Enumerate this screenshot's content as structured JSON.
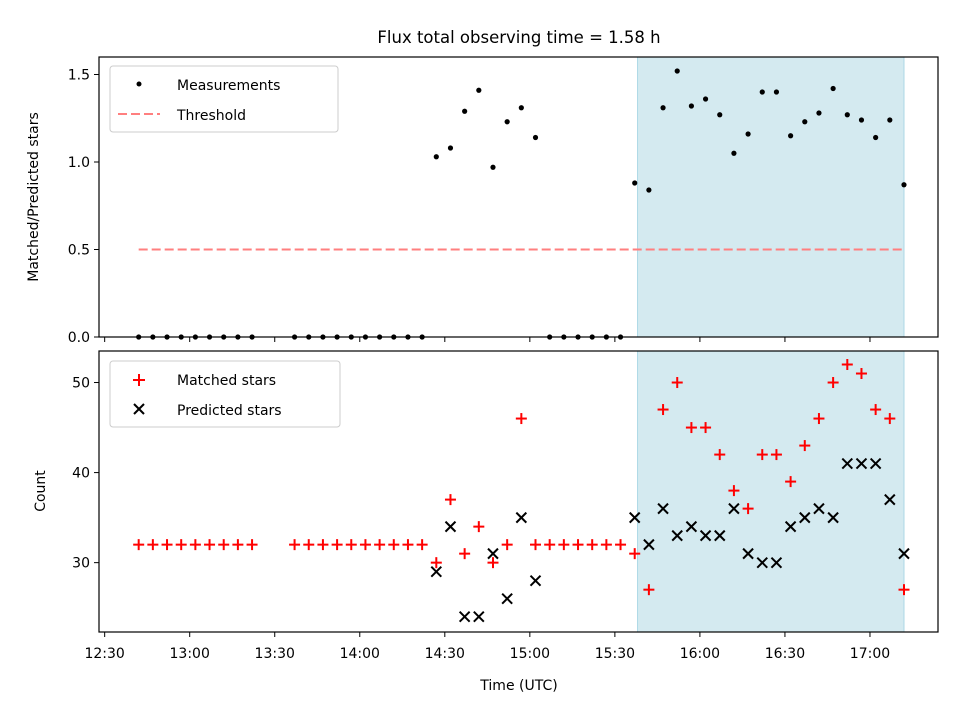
{
  "title": "Flux total observing time = 1.58 h",
  "colors": {
    "measurement": "#000000",
    "threshold": "#ff7f7f",
    "matched": "#ff0000",
    "predicted": "#000000",
    "highlight": "#d4eaf0"
  },
  "chart_data": [
    {
      "type": "scatter",
      "ylabel": "Matched/Predicted stars",
      "xlabel": "",
      "xlim": [
        "12:28",
        "17:24"
      ],
      "ylim": [
        0,
        1.6
      ],
      "yticks": [
        0.0,
        0.5,
        1.0,
        1.5
      ],
      "ytick_labels": [
        "0.0",
        "0.5",
        "1.0",
        "1.5"
      ],
      "grid": false,
      "legend": {
        "position": "top-left",
        "entries": [
          "Measurements",
          "Threshold"
        ]
      },
      "highlight_span": [
        "15:38",
        "17:12"
      ],
      "threshold": {
        "name": "Threshold",
        "value": 0.5,
        "x_range": [
          "12:42",
          "17:12"
        ]
      },
      "series": [
        {
          "name": "Measurements",
          "marker": "dot",
          "x": [
            "12:42",
            "12:47",
            "12:52",
            "12:57",
            "13:02",
            "13:07",
            "13:12",
            "13:17",
            "13:22",
            "13:37",
            "13:42",
            "13:47",
            "13:52",
            "13:57",
            "14:02",
            "14:07",
            "14:12",
            "14:17",
            "14:22",
            "14:27",
            "14:32",
            "14:37",
            "14:42",
            "14:47",
            "14:52",
            "14:57",
            "15:02",
            "15:07",
            "15:12",
            "15:17",
            "15:22",
            "15:27",
            "15:32",
            "15:37",
            "15:42",
            "15:47",
            "15:52",
            "15:57",
            "16:02",
            "16:07",
            "16:12",
            "16:17",
            "16:22",
            "16:27",
            "16:32",
            "16:37",
            "16:42",
            "16:47",
            "16:52",
            "16:57",
            "17:02",
            "17:07",
            "17:12"
          ],
          "values": [
            0,
            0,
            0,
            0,
            0,
            0,
            0,
            0,
            0,
            0,
            0,
            0,
            0,
            0,
            0,
            0,
            0,
            0,
            0,
            1.03,
            1.08,
            1.29,
            1.41,
            0.97,
            1.23,
            1.31,
            1.14,
            0,
            0,
            0,
            0,
            0,
            0,
            0.88,
            0.84,
            1.31,
            1.52,
            1.32,
            1.36,
            1.27,
            1.05,
            1.16,
            1.4,
            1.4,
            1.15,
            1.23,
            1.28,
            1.42,
            1.27,
            1.24,
            1.14,
            1.24,
            0.87
          ]
        }
      ]
    },
    {
      "type": "scatter",
      "ylabel": "Count",
      "xlabel": "Time (UTC)",
      "xlim": [
        "12:28",
        "17:24"
      ],
      "ylim": [
        22.3,
        53.5
      ],
      "yticks": [
        30,
        40,
        50
      ],
      "ytick_labels": [
        "30",
        "40",
        "50"
      ],
      "xticks": [
        "12:30",
        "13:00",
        "13:30",
        "14:00",
        "14:30",
        "15:00",
        "15:30",
        "16:00",
        "16:30",
        "17:00"
      ],
      "grid": false,
      "legend": {
        "position": "top-left",
        "entries": [
          "Matched stars",
          "Predicted stars"
        ]
      },
      "highlight_span": [
        "15:38",
        "17:12"
      ],
      "series": [
        {
          "name": "Matched stars",
          "marker": "plus",
          "x": [
            "12:42",
            "12:47",
            "12:52",
            "12:57",
            "13:02",
            "13:07",
            "13:12",
            "13:17",
            "13:22",
            "13:37",
            "13:42",
            "13:47",
            "13:52",
            "13:57",
            "14:02",
            "14:07",
            "14:12",
            "14:17",
            "14:22",
            "14:27",
            "14:32",
            "14:37",
            "14:42",
            "14:47",
            "14:52",
            "14:57",
            "15:02",
            "15:07",
            "15:12",
            "15:17",
            "15:22",
            "15:27",
            "15:32",
            "15:37",
            "15:42",
            "15:47",
            "15:52",
            "15:57",
            "16:02",
            "16:07",
            "16:12",
            "16:17",
            "16:22",
            "16:27",
            "16:32",
            "16:37",
            "16:42",
            "16:47",
            "16:52",
            "16:57",
            "17:02",
            "17:07",
            "17:12"
          ],
          "values": [
            32,
            32,
            32,
            32,
            32,
            32,
            32,
            32,
            32,
            32,
            32,
            32,
            32,
            32,
            32,
            32,
            32,
            32,
            32,
            30,
            37,
            31,
            34,
            30,
            32,
            46,
            32,
            32,
            32,
            32,
            32,
            32,
            32,
            31,
            27,
            47,
            50,
            45,
            45,
            42,
            38,
            36,
            42,
            42,
            39,
            43,
            46,
            50,
            52,
            51,
            47,
            46,
            27
          ]
        },
        {
          "name": "Predicted stars",
          "marker": "x",
          "x": [
            "14:27",
            "14:32",
            "14:37",
            "14:42",
            "14:47",
            "14:52",
            "14:57",
            "15:02",
            "15:37",
            "15:42",
            "15:47",
            "15:52",
            "15:57",
            "16:02",
            "16:07",
            "16:12",
            "16:17",
            "16:22",
            "16:27",
            "16:32",
            "16:37",
            "16:42",
            "16:47",
            "16:52",
            "16:57",
            "17:02",
            "17:07",
            "17:12"
          ],
          "values": [
            29,
            34,
            24,
            24,
            31,
            26,
            35,
            28,
            35,
            32,
            36,
            33,
            34,
            33,
            33,
            36,
            31,
            30,
            30,
            34,
            35,
            36,
            35,
            41,
            41,
            41,
            37,
            31
          ]
        }
      ]
    }
  ]
}
